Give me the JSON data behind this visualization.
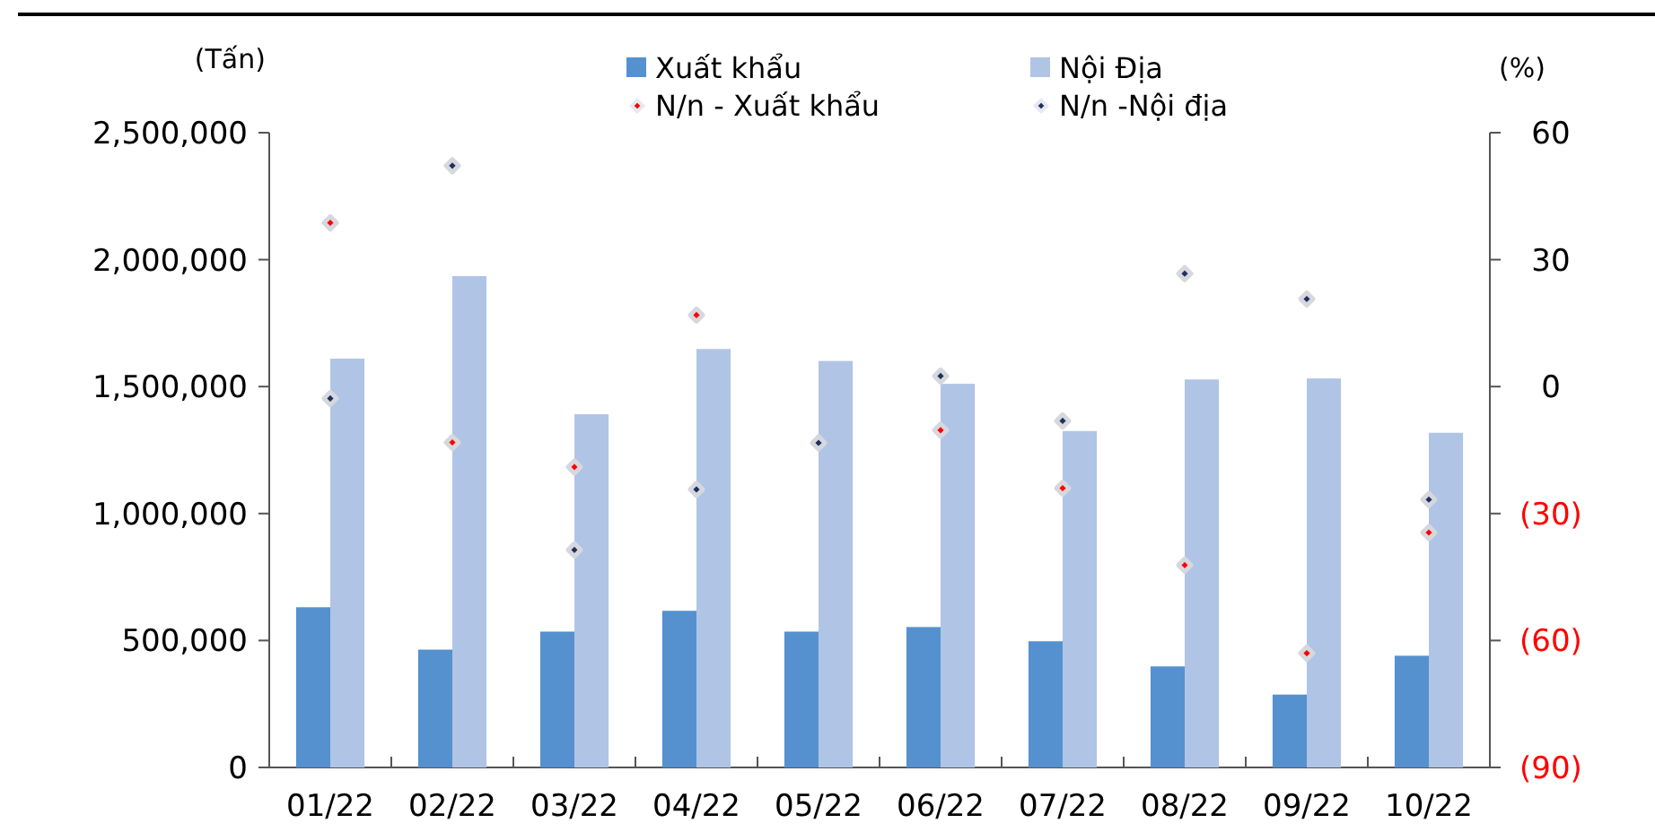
{
  "chart_data": {
    "type": "bar",
    "categories": [
      "01/22",
      "02/22",
      "03/22",
      "04/22",
      "05/22",
      "06/22",
      "07/22",
      "08/22",
      "09/22",
      "10/22"
    ],
    "ylabel": "(Tấn)",
    "y2label": "(%)",
    "ylim": [
      0,
      2500000
    ],
    "yticks": [
      {
        "value": 0,
        "label": "0"
      },
      {
        "value": 500000,
        "label": "500,000"
      },
      {
        "value": 1000000,
        "label": "1,000,000"
      },
      {
        "value": 1500000,
        "label": "1,500,000"
      },
      {
        "value": 2000000,
        "label": "2,000,000"
      },
      {
        "value": 2500000,
        "label": "2,500,000"
      }
    ],
    "y2lim": [
      -90,
      60
    ],
    "y2ticks": [
      {
        "value": -90,
        "label": "(90)"
      },
      {
        "value": -60,
        "label": "(60)"
      },
      {
        "value": -30,
        "label": "(30)"
      },
      0,
      30,
      60
    ],
    "grid": false,
    "legend": "top",
    "series": [
      {
        "name": "Xuất khẩu",
        "color": "#5591cf",
        "values": [
          631000,
          464000,
          535000,
          617000,
          535000,
          553000,
          497000,
          398000,
          287000,
          440000
        ]
      },
      {
        "name": "Nội Địa",
        "color": "#b0c4e6",
        "values": [
          1610000,
          1935000,
          1391000,
          1648000,
          1601000,
          1511000,
          1325000,
          1528000,
          1532000,
          1318000
        ]
      },
      {
        "name": "N/n - Xuất khẩu",
        "type": "scatter",
        "axis": "y2",
        "marker": "diamond",
        "color": "#ff0000",
        "values": [
          38.7,
          -13.2,
          -19,
          16.9,
          null,
          -10.3,
          -24,
          -42.2,
          -63,
          -34.5
        ]
      },
      {
        "name": "N/n -Nội địa",
        "type": "scatter",
        "axis": "y2",
        "marker": "diamond",
        "color": "#1f2f5e",
        "values": [
          -2.8,
          52.2,
          -38.6,
          -24.3,
          -13.3,
          2.5,
          -8.1,
          26.7,
          20.7,
          -26.7
        ]
      }
    ]
  }
}
